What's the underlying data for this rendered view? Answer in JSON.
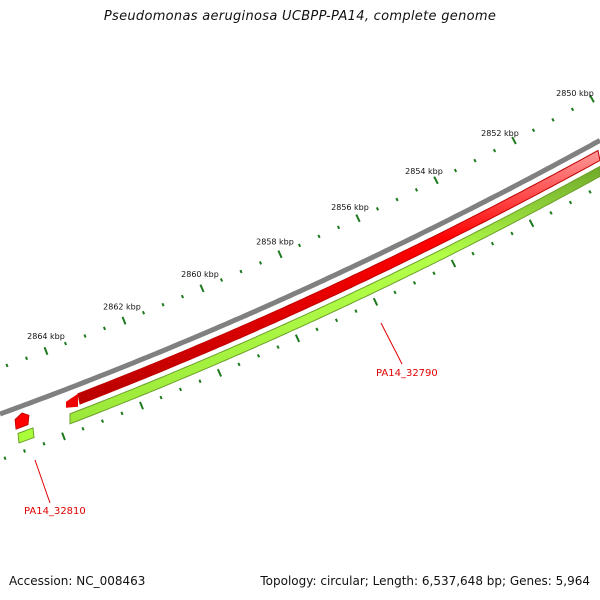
{
  "title": "Pseudomonas aeruginosa UCBPP-PA14, complete genome",
  "colors": {
    "backbone": "#808080",
    "forward_gene": "#ff0000",
    "reverse_gene": "#a8ff3a",
    "tick": "#1e7a1e",
    "gene_label": "#e00000"
  },
  "scale_labels": [
    "2850 kbp",
    "2852 kbp",
    "2854 kbp",
    "2856 kbp",
    "2858 kbp",
    "2860 kbp",
    "2862 kbp",
    "2864 kbp"
  ],
  "genes": [
    {
      "label": "PA14_32790",
      "strand": "forward"
    },
    {
      "label": "PA14_32810",
      "strand": "forward"
    }
  ],
  "footer": {
    "accession": "Accession: NC_008463",
    "summary": "Topology: circular; Length: 6,537,648 bp; Genes: 5,964"
  }
}
